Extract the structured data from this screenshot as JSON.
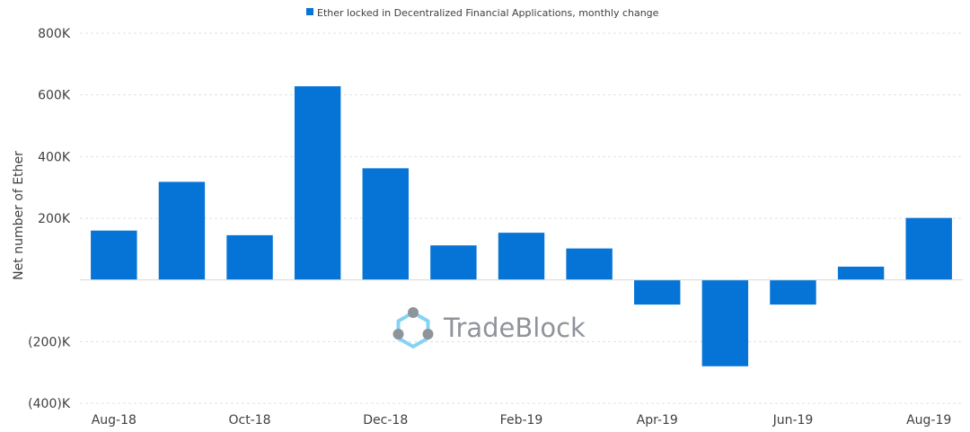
{
  "chart_data": {
    "type": "bar",
    "legend": {
      "label": "Ether locked in Decentralized Financial Applications, monthly change",
      "placement": "top-center"
    },
    "ylabel": "Net number of Ether",
    "ylim": [
      -400000,
      800000
    ],
    "y_ticks": [
      -400000,
      -200000,
      0,
      200000,
      400000,
      600000,
      800000
    ],
    "y_tick_labels": [
      "(400)K",
      "(200)K",
      "",
      "200K",
      "400K",
      "600K",
      "800K"
    ],
    "categories": [
      "Aug-18",
      "Sep-18",
      "Oct-18",
      "Nov-18",
      "Dec-18",
      "Jan-19",
      "Feb-19",
      "Mar-19",
      "Apr-19",
      "May-19",
      "Jun-19",
      "Jul-19",
      "Aug-19"
    ],
    "x_tick_labels": [
      "Aug-18",
      "",
      "Oct-18",
      "",
      "Dec-18",
      "",
      "Feb-19",
      "",
      "Apr-19",
      "",
      "Jun-19",
      "",
      "Aug-19"
    ],
    "series": [
      {
        "name": "Ether locked in Decentralized Financial Applications, monthly change",
        "values": [
          160000,
          318000,
          145000,
          628000,
          362000,
          112000,
          153000,
          102000,
          -80000,
          -280000,
          -80000,
          43000,
          201000
        ]
      }
    ],
    "colors": {
      "bar": "#0574d6",
      "grid": "#e0e0e0"
    },
    "grid": true,
    "watermark": {
      "text": "TradeBlock"
    }
  }
}
